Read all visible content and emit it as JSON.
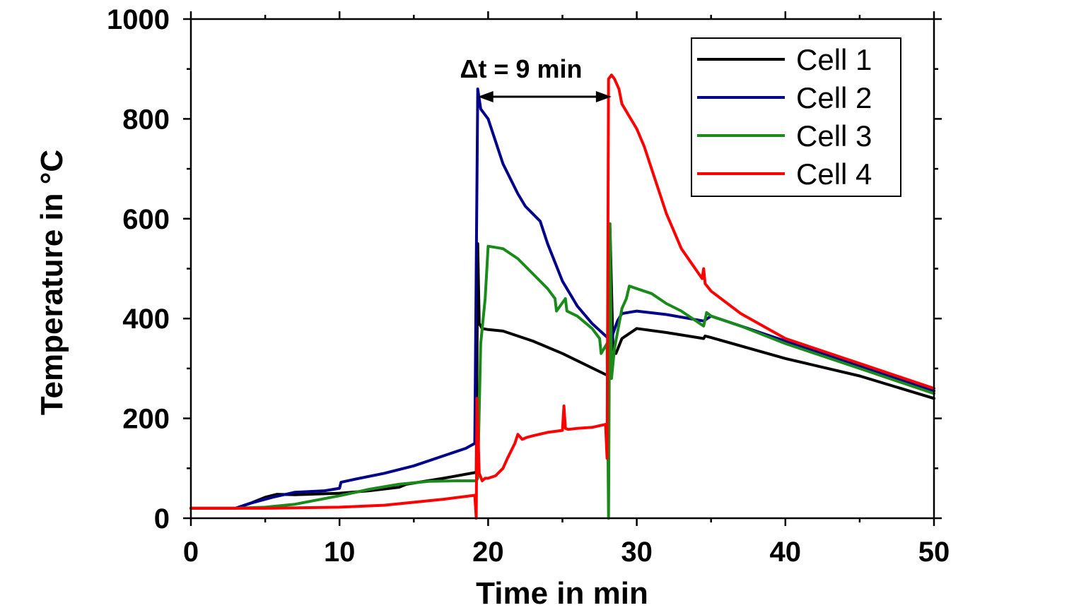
{
  "chart_data": {
    "type": "line",
    "xlabel": "Time in min",
    "ylabel": "Temperature in °C",
    "xlim": [
      0,
      50
    ],
    "ylim": [
      0,
      1000
    ],
    "xticks": [
      0,
      10,
      20,
      30,
      40,
      50
    ],
    "yticks": [
      0,
      200,
      400,
      600,
      800,
      1000
    ],
    "grid": false,
    "legend_position": "top-right",
    "annotation": {
      "text": "Δt = 9 min",
      "from_x": 19.3,
      "to_x": 28.3,
      "y": 850
    },
    "series": [
      {
        "name": "Cell 1",
        "color": "#000000",
        "x": [
          0,
          3,
          4,
          5,
          5.8,
          7,
          10,
          12,
          14,
          14.5,
          17,
          19.2,
          19.3,
          19.4,
          19.6,
          20,
          21,
          23,
          25,
          28.1,
          28.2,
          28.4,
          28.6,
          29,
          30,
          32,
          34.5,
          34.6,
          35,
          40,
          45,
          50
        ],
        "y": [
          20,
          20,
          30,
          42,
          48,
          47,
          50,
          55,
          62,
          68,
          80,
          92,
          550,
          390,
          380,
          378,
          375,
          355,
          330,
          285,
          580,
          340,
          330,
          360,
          380,
          372,
          360,
          365,
          362,
          320,
          285,
          240
        ]
      },
      {
        "name": "Cell 2",
        "color": "#00008b",
        "x": [
          0,
          3,
          4,
          5.5,
          7,
          9,
          10,
          10.1,
          11,
          13,
          15,
          17,
          18.5,
          19.1,
          19.3,
          19.5,
          20,
          21,
          22,
          22.5,
          23,
          23.5,
          24,
          25,
          26,
          27,
          28.1,
          28.2,
          28.4,
          28.7,
          29,
          30,
          32,
          34.5,
          35,
          37,
          40,
          45,
          50
        ],
        "y": [
          20,
          20,
          30,
          42,
          52,
          55,
          60,
          72,
          78,
          90,
          105,
          125,
          140,
          150,
          860,
          820,
          800,
          710,
          650,
          625,
          610,
          595,
          550,
          475,
          425,
          390,
          360,
          330,
          370,
          395,
          410,
          415,
          408,
          395,
          405,
          385,
          355,
          305,
          255
        ]
      },
      {
        "name": "Cell 3",
        "color": "#1a8a1a",
        "x": [
          0,
          3,
          5,
          7,
          10,
          12,
          14,
          16,
          18,
          19.2,
          19.3,
          19.5,
          19.8,
          20,
          21,
          22,
          23,
          24,
          24.5,
          24.6,
          25.2,
          25.3,
          26,
          27,
          27.5,
          27.6,
          28,
          28.1,
          28.2,
          28.3,
          28.5,
          29,
          29.3,
          29.5,
          30,
          31,
          32,
          33,
          34.5,
          34.7,
          35,
          37,
          40,
          45,
          50
        ],
        "y": [
          20,
          20,
          22,
          28,
          45,
          58,
          68,
          74,
          75,
          75,
          80,
          350,
          440,
          545,
          540,
          520,
          490,
          460,
          440,
          415,
          440,
          415,
          405,
          380,
          360,
          330,
          350,
          0,
          590,
          280,
          340,
          420,
          440,
          465,
          460,
          450,
          430,
          415,
          385,
          412,
          405,
          385,
          350,
          300,
          250
        ]
      },
      {
        "name": "Cell 4",
        "color": "#ff0000",
        "x": [
          0,
          5,
          10,
          13,
          15,
          17,
          19.1,
          19.2,
          19.25,
          19.4,
          19.6,
          19.8,
          20,
          20.5,
          21,
          21.3,
          21.8,
          22,
          22.3,
          22.6,
          23,
          24,
          25,
          25.1,
          25.2,
          25.4,
          26,
          27,
          27.9,
          28.0,
          28.1,
          28.3,
          28.5,
          28.8,
          29,
          30,
          30.5,
          31,
          32,
          33,
          34.4,
          34.5,
          34.6,
          35,
          37,
          40,
          45,
          50
        ],
        "y": [
          20,
          20,
          22,
          26,
          32,
          38,
          46,
          0,
          240,
          90,
          75,
          80,
          80,
          85,
          100,
          120,
          150,
          168,
          158,
          162,
          165,
          172,
          176,
          225,
          180,
          178,
          180,
          182,
          188,
          120,
          880,
          888,
          880,
          860,
          830,
          780,
          745,
          700,
          610,
          540,
          480,
          500,
          470,
          455,
          410,
          360,
          310,
          260
        ]
      }
    ]
  }
}
